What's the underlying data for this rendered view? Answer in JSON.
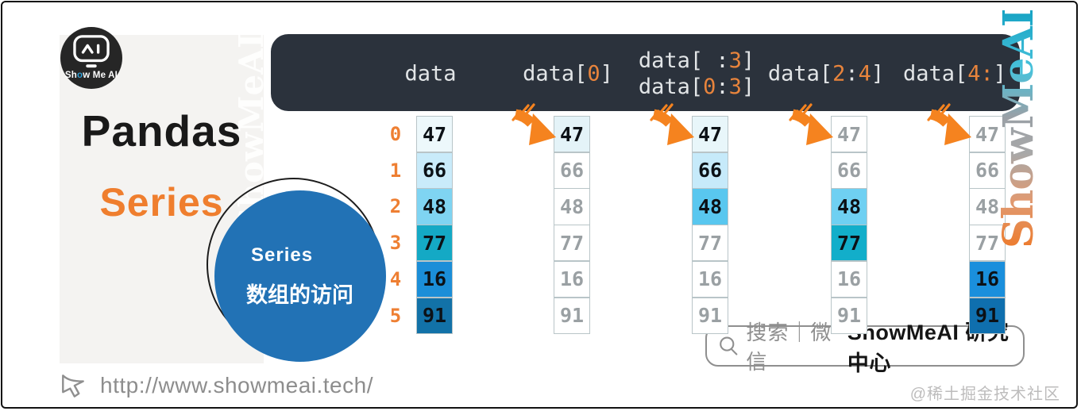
{
  "branding": {
    "logo": {
      "prefix": "Sh",
      "o": "o",
      "suffix": "w Me AI"
    },
    "panel_title": "Pandas",
    "panel_subtitle": "Series",
    "topic_circle": {
      "line1": "Series",
      "line2": "数组的访问"
    },
    "watermark_text": "ShowMeAI",
    "url": "http://www.showmeai.tech/",
    "credit": "@稀土掘金技术社区"
  },
  "search_banner": {
    "prefix": "搜索｜微信",
    "brand": "ShowMeAI 研究中心"
  },
  "colors": {
    "header_bg": "#2b323c",
    "code_text": "#e2e5e7",
    "code_number": "#e8843c",
    "index_orange": "#ee7f33",
    "arrow_orange": "#f5831f",
    "topic_circle_blue": "#2272b5",
    "cell_border": "#b9c5c8",
    "muted_text": "#9aa0a3"
  },
  "chart_data": {
    "type": "table",
    "title": "Pandas Series 数组的访问",
    "indices": [
      "0",
      "1",
      "2",
      "3",
      "4",
      "5"
    ],
    "values": [
      "47",
      "66",
      "48",
      "77",
      "16",
      "91"
    ],
    "columns": [
      {
        "id": "data",
        "label_lines": [
          [
            {
              "t": "data",
              "n": false
            }
          ]
        ],
        "arrow": false,
        "cells": [
          {
            "v": "47",
            "bg": "#edf8fb",
            "sel": true
          },
          {
            "v": "66",
            "bg": "#c9ebfa",
            "sel": true
          },
          {
            "v": "48",
            "bg": "#7fd4f2",
            "sel": true
          },
          {
            "v": "77",
            "bg": "#14a9c5",
            "sel": true
          },
          {
            "v": "16",
            "bg": "#1b8ed8",
            "sel": true
          },
          {
            "v": "91",
            "bg": "#1272a8",
            "sel": true
          }
        ]
      },
      {
        "id": "data-0",
        "label_lines": [
          [
            {
              "t": "data[",
              "n": false
            },
            {
              "t": "0",
              "n": true
            },
            {
              "t": "]",
              "n": false
            }
          ]
        ],
        "arrow": true,
        "cells": [
          {
            "v": "47",
            "bg": "#e4f3f8",
            "sel": true
          },
          {
            "v": "66",
            "bg": "#ffffff",
            "sel": false
          },
          {
            "v": "48",
            "bg": "#ffffff",
            "sel": false
          },
          {
            "v": "77",
            "bg": "#ffffff",
            "sel": false
          },
          {
            "v": "16",
            "bg": "#ffffff",
            "sel": false
          },
          {
            "v": "91",
            "bg": "#ffffff",
            "sel": false
          }
        ]
      },
      {
        "id": "data-slice-to-3",
        "label_lines": [
          [
            {
              "t": "data[ :",
              "n": false
            },
            {
              "t": "3",
              "n": true
            },
            {
              "t": "]",
              "n": false
            }
          ],
          [
            {
              "t": "data[",
              "n": false
            },
            {
              "t": "0",
              "n": true
            },
            {
              "t": ":",
              "n": false
            },
            {
              "t": "3",
              "n": true
            },
            {
              "t": "]",
              "n": false
            }
          ]
        ],
        "arrow": true,
        "cells": [
          {
            "v": "47",
            "bg": "#e8f6fa",
            "sel": true
          },
          {
            "v": "66",
            "bg": "#c6eafa",
            "sel": true
          },
          {
            "v": "48",
            "bg": "#59c7ef",
            "sel": true
          },
          {
            "v": "77",
            "bg": "#ffffff",
            "sel": false
          },
          {
            "v": "16",
            "bg": "#ffffff",
            "sel": false
          },
          {
            "v": "91",
            "bg": "#ffffff",
            "sel": false
          }
        ]
      },
      {
        "id": "data-slice-2-4",
        "label_lines": [
          [
            {
              "t": "data[",
              "n": false
            },
            {
              "t": "2",
              "n": true
            },
            {
              "t": ":",
              "n": false
            },
            {
              "t": "4",
              "n": true
            },
            {
              "t": "]",
              "n": false
            }
          ]
        ],
        "arrow": true,
        "cells": [
          {
            "v": "47",
            "bg": "#ffffff",
            "sel": false
          },
          {
            "v": "66",
            "bg": "#ffffff",
            "sel": false
          },
          {
            "v": "48",
            "bg": "#6fd0f2",
            "sel": true
          },
          {
            "v": "77",
            "bg": "#12aeca",
            "sel": true
          },
          {
            "v": "16",
            "bg": "#ffffff",
            "sel": false
          },
          {
            "v": "91",
            "bg": "#ffffff",
            "sel": false
          }
        ]
      },
      {
        "id": "data-slice-4-end",
        "label_lines": [
          [
            {
              "t": "data[",
              "n": false
            },
            {
              "t": "4:",
              "n": true
            },
            {
              "t": "]",
              "n": false
            }
          ]
        ],
        "arrow": true,
        "cells": [
          {
            "v": "47",
            "bg": "#ffffff",
            "sel": false
          },
          {
            "v": "66",
            "bg": "#ffffff",
            "sel": false
          },
          {
            "v": "48",
            "bg": "#ffffff",
            "sel": false
          },
          {
            "v": "77",
            "bg": "#ffffff",
            "sel": false
          },
          {
            "v": "16",
            "bg": "#1a8fdc",
            "sel": true
          },
          {
            "v": "91",
            "bg": "#0f6fae",
            "sel": true
          }
        ]
      }
    ]
  }
}
